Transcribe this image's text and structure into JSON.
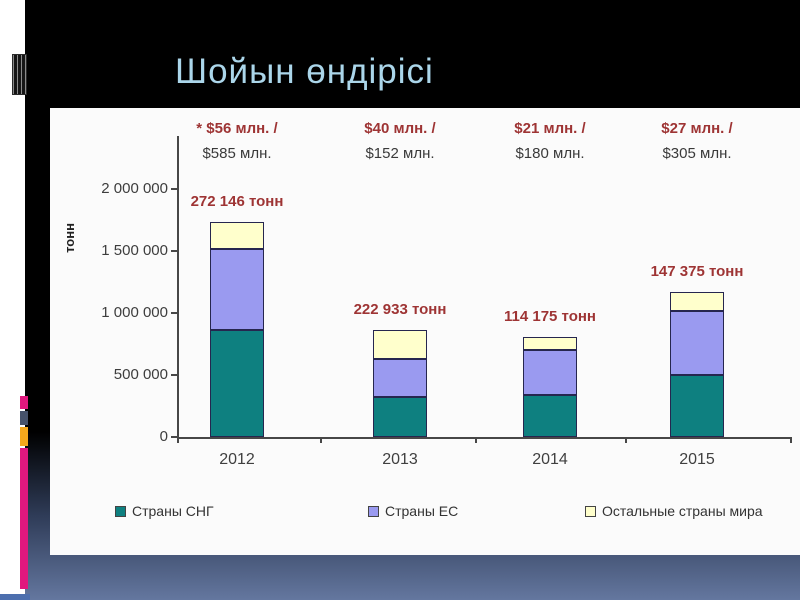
{
  "slide": {
    "title": "Шойын өндірісі"
  },
  "decor": {
    "strip_magenta": "#E0187E",
    "strip_orange": "#F5A81C",
    "strip_slate": "#46526A",
    "bottom_accent_blue": "#4D6FAE",
    "title_blue": "#ABD6EA",
    "annotation_red": "#9E3434"
  },
  "chart_data": {
    "type": "bar",
    "stacked": true,
    "title": "",
    "xlabel": "",
    "ylabel": "тонн",
    "categories": [
      "2012",
      "2013",
      "2014",
      "2015"
    ],
    "series": [
      {
        "name": "Страны СНГ",
        "color": "#0E8080",
        "values": [
          860000,
          320000,
          340000,
          500000
        ]
      },
      {
        "name": "Страны ЕС",
        "color": "#9A9AF0",
        "values": [
          660000,
          310000,
          360000,
          515000
        ]
      },
      {
        "name": "Остальные страны мира",
        "color": "#FFFFCC",
        "values": [
          210000,
          230000,
          110000,
          155000
        ]
      }
    ],
    "bar_labels": [
      "272 146 тонн",
      "222 933 тонн",
      "114 175 тонн",
      "147 375 тонн"
    ],
    "annotations": [
      {
        "line1": "* $56 млн. /",
        "line2": "$585 млн."
      },
      {
        "line1": "$40 млн. /",
        "line2": "$152 млн."
      },
      {
        "line1": "$21 млн. /",
        "line2": "$180 млн."
      },
      {
        "line1": "$27 млн. /",
        "line2": "$305 млн."
      }
    ],
    "y_ticks": [
      {
        "value": 0,
        "label": "0"
      },
      {
        "value": 500000,
        "label": "500 000"
      },
      {
        "value": 1000000,
        "label": "1 000 000"
      },
      {
        "value": 1500000,
        "label": "1 500 000"
      },
      {
        "value": 2000000,
        "label": "2 000 000"
      }
    ],
    "ylim": [
      0,
      2400000
    ],
    "grid": false,
    "legend_position": "bottom"
  }
}
